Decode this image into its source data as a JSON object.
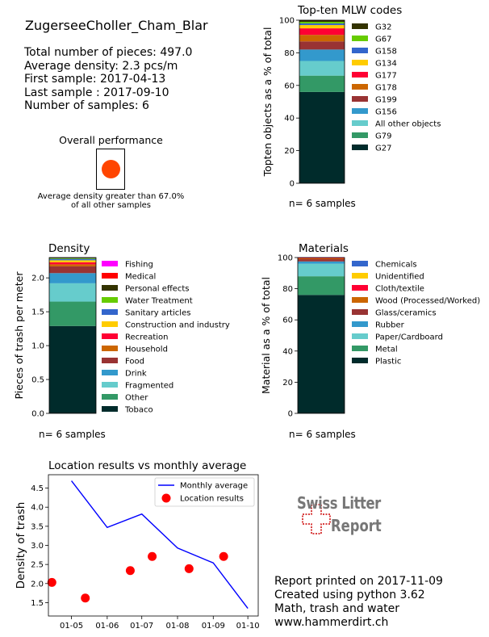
{
  "header": {
    "location": "ZugerseeCholler_Cham_Blar",
    "stats": [
      "Total number of pieces: 497.0",
      "Average density: 2.3 pcs/m",
      "First sample: 2017-04-13",
      "Last sample : 2017-09-10",
      "Number of samples: 6"
    ]
  },
  "performance": {
    "title": "Overall performance",
    "indicator_color": "#ff4500",
    "caption_line1": "Average density greater than 67.0%",
    "caption_line2": "of all other samples"
  },
  "colors": {
    "G27": "#002b2b",
    "G79": "#339966",
    "All other objects": "#66cccc",
    "G156": "#3399cc",
    "G199": "#993333",
    "G178": "#cc6600",
    "G177": "#ff0033",
    "G134": "#ffcc00",
    "G158": "#3366cc",
    "G67": "#66cc00",
    "G32": "#333300",
    "Tobaco": "#002b2b",
    "Other": "#339966",
    "Fragmented": "#66cccc",
    "Drink": "#3399cc",
    "Food": "#993333",
    "Household": "#cc6600",
    "Recreation": "#ff0033",
    "Construction and industry": "#ffcc00",
    "Sanitary articles": "#3366cc",
    "Water Treatment": "#66cc00",
    "Personal effects": "#333300",
    "Medical": "#ff0000",
    "Fishing": "#ff00ff",
    "Plastic": "#002b2b",
    "Metal": "#339966",
    "Paper/Cardboard": "#66cccc",
    "Rubber": "#3399cc",
    "Glass/ceramics": "#993333",
    "Wood (Processed/Worked)": "#cc6600",
    "Cloth/textile": "#ff0033",
    "Unidentified": "#ffcc00",
    "Chemicals": "#3366cc"
  },
  "chart_data": [
    {
      "id": "topten",
      "type": "bar",
      "title": "Top-ten MLW codes",
      "ylabel": "Topten objects as a % of total",
      "note": "n= 6 samples",
      "ylim": [
        0,
        100
      ],
      "yticks": [
        "0",
        "20",
        "40",
        "60",
        "80",
        "100"
      ],
      "legend": [
        "G32",
        "G67",
        "G158",
        "G134",
        "G177",
        "G178",
        "G199",
        "G156",
        "All other objects",
        "G79",
        "G27"
      ],
      "series": [
        {
          "name": "G27",
          "value": 56
        },
        {
          "name": "G79",
          "value": 10
        },
        {
          "name": "All other objects",
          "value": 9
        },
        {
          "name": "G156",
          "value": 7
        },
        {
          "name": "G199",
          "value": 5
        },
        {
          "name": "G178",
          "value": 4
        },
        {
          "name": "G177",
          "value": 4
        },
        {
          "name": "G134",
          "value": 2
        },
        {
          "name": "G158",
          "value": 1
        },
        {
          "name": "G67",
          "value": 1
        },
        {
          "name": "G32",
          "value": 1
        }
      ]
    },
    {
      "id": "density",
      "type": "bar",
      "title": "Density",
      "ylabel": "Pieces of trash per meter",
      "note": "n= 6 samples",
      "ylim": [
        0,
        2.3
      ],
      "yticks": [
        "0.0",
        "0.5",
        "1.0",
        "1.5",
        "2.0"
      ],
      "legend": [
        "Fishing",
        "Medical",
        "Personal effects",
        "Water Treatment",
        "Sanitary articles",
        "Construction and industry",
        "Recreation",
        "Household",
        "Food",
        "Drink",
        "Fragmented",
        "Other",
        "Tobaco"
      ],
      "series": [
        {
          "name": "Tobaco",
          "value": 1.29
        },
        {
          "name": "Other",
          "value": 0.36
        },
        {
          "name": "Fragmented",
          "value": 0.27
        },
        {
          "name": "Drink",
          "value": 0.15
        },
        {
          "name": "Food",
          "value": 0.1
        },
        {
          "name": "Household",
          "value": 0.03
        },
        {
          "name": "Recreation",
          "value": 0.03
        },
        {
          "name": "Construction and industry",
          "value": 0.03
        },
        {
          "name": "Sanitary articles",
          "value": 0.02
        },
        {
          "name": "Water Treatment",
          "value": 0.01
        },
        {
          "name": "Personal effects",
          "value": 0.01
        }
      ]
    },
    {
      "id": "materials",
      "type": "bar",
      "title": "Materials",
      "ylabel": "Material as a % of total",
      "note": "n= 6 samples",
      "ylim": [
        0,
        100
      ],
      "yticks": [
        "0",
        "20",
        "40",
        "60",
        "80",
        "100"
      ],
      "legend": [
        "Chemicals",
        "Unidentified",
        "Cloth/textile",
        "Wood (Processed/Worked)",
        "Glass/ceramics",
        "Rubber",
        "Paper/Cardboard",
        "Metal",
        "Plastic"
      ],
      "series": [
        {
          "name": "Plastic",
          "value": 76
        },
        {
          "name": "Metal",
          "value": 12
        },
        {
          "name": "Paper/Cardboard",
          "value": 8
        },
        {
          "name": "Rubber",
          "value": 1.5
        },
        {
          "name": "Glass/ceramics",
          "value": 1.5
        },
        {
          "name": "Wood (Processed/Worked)",
          "value": 0.5
        },
        {
          "name": "Cloth/textile",
          "value": 0.5
        }
      ]
    },
    {
      "id": "location",
      "type": "line",
      "title": "Location results vs monthly average",
      "ylabel": "Density of trash",
      "ylim": [
        1.15,
        4.85
      ],
      "yticks": [
        1.5,
        2.0,
        2.5,
        3.0,
        3.5,
        4.0,
        4.5
      ],
      "xlim_days": [
        -20,
        162
      ],
      "xticks": [
        {
          "label": "01-05",
          "day": 0
        },
        {
          "label": "01-06",
          "day": 31
        },
        {
          "label": "01-07",
          "day": 61
        },
        {
          "label": "01-08",
          "day": 92
        },
        {
          "label": "01-09",
          "day": 123
        },
        {
          "label": "01-10",
          "day": 153
        }
      ],
      "series": [
        {
          "name": "Monthly average",
          "kind": "line",
          "color": "#0000ff",
          "points": [
            [
              0,
              4.69
            ],
            [
              31,
              3.47
            ],
            [
              61,
              3.82
            ],
            [
              92,
              2.93
            ],
            [
              123,
              2.54
            ],
            [
              153,
              1.35
            ]
          ]
        },
        {
          "name": "Location results",
          "kind": "scatter",
          "color": "#ff0000",
          "points": [
            [
              -17,
              2.03
            ],
            [
              12,
              1.62
            ],
            [
              51,
              2.34
            ],
            [
              70,
              2.71
            ],
            [
              102,
              2.39
            ],
            [
              132,
              2.71
            ]
          ]
        }
      ]
    }
  ],
  "brand": {
    "line1": "Swiss Litter",
    "line2": "Report",
    "color": "#cc0000"
  },
  "footer": [
    "Report printed on 2017-11-09",
    "Created using python 3.62",
    "Math, trash and water",
    "www.hammerdirt.ch"
  ]
}
